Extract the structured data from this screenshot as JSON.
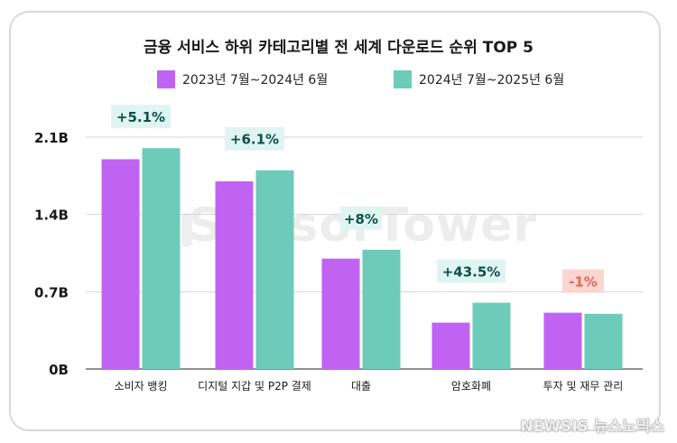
{
  "chart_data": {
    "type": "bar",
    "title": "금융 서비스 하위 카테고리별 전 세계 다운로드 순위 TOP 5",
    "categories": [
      "소비자 뱅킹",
      "디지털 지갑 및 P2P 결제",
      "대출",
      "암호화폐",
      "투자 및 재무 관리"
    ],
    "series": [
      {
        "name": "2023년 7월~2024년 6월",
        "values": [
          1.9,
          1.7,
          1.0,
          0.42,
          0.51
        ],
        "color": "#c063f2"
      },
      {
        "name": "2024년 7월~2025년 6월",
        "values": [
          2.0,
          1.8,
          1.08,
          0.6,
          0.5
        ],
        "color": "#6ccbb9"
      }
    ],
    "annotations": [
      "+5.1%",
      "+6.1%",
      "+8%",
      "+43.5%",
      "-1%"
    ],
    "annotation_colors": [
      "#dff5f1",
      "#dff5f1",
      "#dff5f1",
      "#dff5f1",
      "#fbd5cf"
    ],
    "yticks": [
      "0B",
      "0.7B",
      "1.4B",
      "2.1B"
    ],
    "ytick_values": [
      0,
      0.7,
      1.4,
      2.1
    ],
    "ylim": [
      0,
      2.1
    ],
    "grid": true,
    "legend": "top"
  },
  "watermark": "SensorTower",
  "footer_logo": "NEWSIS 뉴스노믹스"
}
